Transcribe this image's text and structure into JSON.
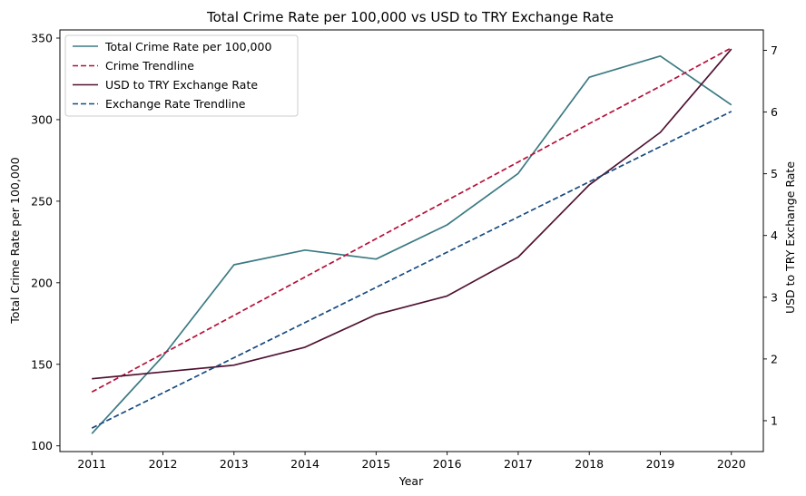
{
  "chart_data": {
    "type": "line",
    "title": "Total Crime Rate per 100,000 vs USD to TRY Exchange Rate",
    "xlabel": "Year",
    "ylabel_left": "Total Crime Rate per 100,000",
    "ylabel_right": "USD to TRY Exchange Rate",
    "x": [
      2011,
      2012,
      2013,
      2014,
      2015,
      2016,
      2017,
      2018,
      2019,
      2020
    ],
    "xlim": [
      2010.55,
      2020.45
    ],
    "ylim_left": [
      96.5,
      355
    ],
    "ylim_right": [
      0.5,
      7.33
    ],
    "yticks_left": [
      100,
      150,
      200,
      250,
      300,
      350
    ],
    "yticks_right": [
      1,
      2,
      3,
      4,
      5,
      6,
      7
    ],
    "legend_position": "top-left",
    "grid": false,
    "series": [
      {
        "name": "Total Crime Rate per 100,000",
        "axis": "left",
        "style": "solid",
        "color": "#3b7a82",
        "values": [
          107.5,
          155,
          211,
          220,
          214.5,
          235.5,
          267,
          326,
          339,
          309
        ]
      },
      {
        "name": "Crime Trendline",
        "axis": "left",
        "style": "dashed",
        "color": "#b5103a",
        "values": [
          133,
          156.5,
          180,
          203.5,
          227,
          250.5,
          274,
          297.5,
          320.5,
          344
        ]
      },
      {
        "name": "USD to TRY Exchange Rate",
        "axis": "right",
        "style": "solid",
        "color": "#4f1231",
        "values": [
          1.68,
          1.79,
          1.9,
          2.19,
          2.72,
          3.02,
          3.65,
          4.82,
          5.67,
          7.02
        ]
      },
      {
        "name": "Exchange Rate Trendline",
        "axis": "right",
        "style": "dashed",
        "color": "#174a80",
        "values": [
          0.88,
          1.45,
          2.02,
          2.59,
          3.16,
          3.73,
          4.3,
          4.87,
          5.44,
          6.01
        ]
      }
    ]
  }
}
